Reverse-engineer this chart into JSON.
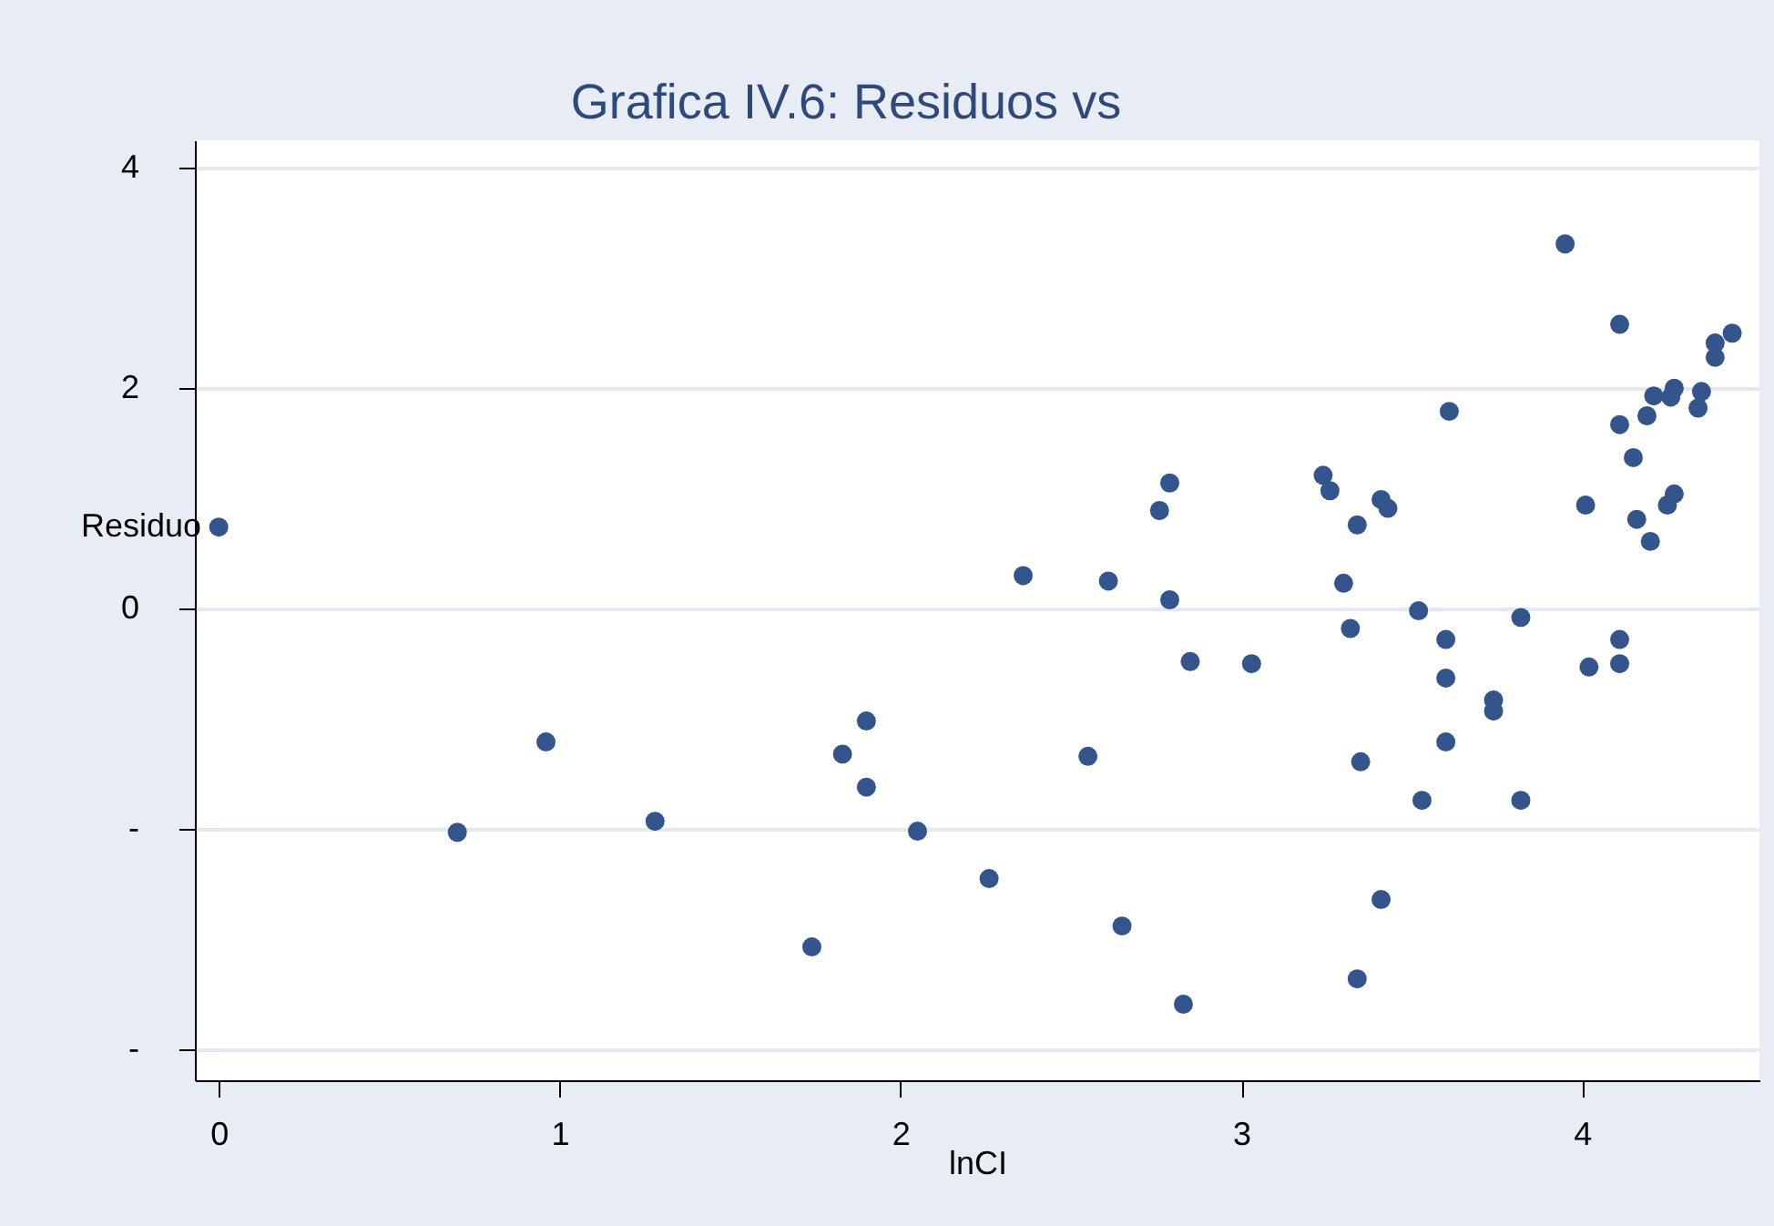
{
  "chart_data": {
    "type": "scatter",
    "title": "Grafica IV.6: Residuos vs",
    "xlabel": "lnCI",
    "ylabel": "Residuo",
    "xlim": [
      -0.07,
      4.52
    ],
    "xticks": [
      0,
      1,
      2,
      3,
      4
    ],
    "ylim": [
      -4.28,
      4.25
    ],
    "yticks": [
      {
        "value": -4,
        "label": "-"
      },
      {
        "value": -2,
        "label": "-"
      },
      0,
      2,
      4
    ],
    "grid": "y",
    "marker": "circle",
    "x": [
      0,
      0.7,
      0.96,
      1.28,
      1.74,
      1.83,
      1.9,
      1.9,
      2.05,
      2.26,
      2.36,
      2.55,
      2.61,
      2.65,
      2.76,
      2.79,
      2.79,
      2.83,
      2.85,
      3.03,
      3.24,
      3.26,
      3.3,
      3.32,
      3.34,
      3.34,
      3.35,
      3.41,
      3.41,
      3.43,
      3.52,
      3.53,
      3.6,
      3.6,
      3.6,
      3.61,
      3.74,
      3.74,
      3.82,
      3.82,
      3.95,
      4.01,
      4.02,
      4.11,
      4.11,
      4.11,
      4.11,
      4.15,
      4.16,
      4.19,
      4.2,
      4.21,
      4.26,
      4.27,
      4.25,
      4.27,
      4.34,
      4.35,
      4.39,
      4.39,
      4.44
    ],
    "series": [
      {
        "color": "#34558b",
        "values": [
          0.74,
          -2.03,
          -1.21,
          -1.93,
          -3.07,
          -1.32,
          -1.02,
          -1.62,
          -2.02,
          -2.45,
          0.3,
          -1.34,
          0.25,
          -2.88,
          0.89,
          1.14,
          0.08,
          -3.59,
          -0.48,
          -0.5,
          1.21,
          1.07,
          0.23,
          -0.18,
          0.76,
          -3.36,
          -1.39,
          0.99,
          -2.64,
          0.91,
          -0.02,
          -1.74,
          -0.28,
          -0.63,
          -1.21,
          1.79,
          -0.83,
          -0.93,
          -0.08,
          -1.74,
          3.31,
          0.94,
          -0.53,
          2.58,
          1.67,
          -0.28,
          -0.5,
          1.37,
          0.81,
          1.75,
          0.61,
          1.93,
          1.92,
          2.0,
          0.94,
          1.04,
          1.82,
          1.97,
          2.28,
          2.41,
          2.5
        ]
      }
    ]
  }
}
